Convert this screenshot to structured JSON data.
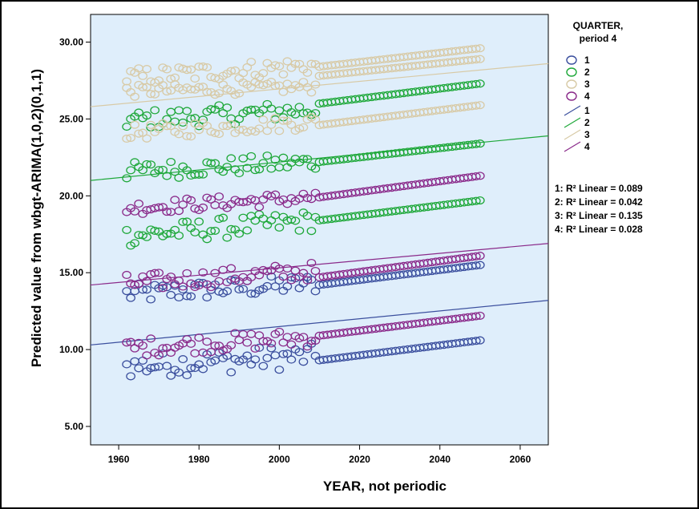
{
  "chart_data": {
    "type": "scatter",
    "title": "",
    "xlabel": "YEAR, not periodic",
    "ylabel": "Predicted value from wbgt-ARIMA(1,0,2)(0,1,1)",
    "xlim": [
      1953,
      2067
    ],
    "ylim": [
      3.8,
      31.8
    ],
    "x_ticks": [
      "1960",
      "1980",
      "2000",
      "2020",
      "2040",
      "2060"
    ],
    "y_ticks": [
      "5.00",
      "10.00",
      "15.00",
      "20.00",
      "25.00",
      "30.00"
    ],
    "grid": false,
    "plot_background": "#dfeefb",
    "legend": {
      "title_line1": "QUARTER,",
      "title_line2": "period 4",
      "placement": "right",
      "marker_labels": [
        "1",
        "2",
        "3",
        "4"
      ],
      "line_labels": [
        "1",
        "2",
        "3",
        "4"
      ]
    },
    "fit_labels": [
      "1: R² Linear = 0.089",
      "2: R² Linear = 0.042",
      "3: R² Linear = 0.135",
      "4: R² Linear = 0.028"
    ],
    "series": [
      {
        "name": "1",
        "color": "#3b4f9e",
        "fit_line": {
          "x": [
            1953,
            2067
          ],
          "y": [
            10.3,
            13.2
          ]
        },
        "bands": [
          {
            "x_start": 1962,
            "x_end": 2009,
            "y_start": 13.6,
            "y_end": 14.3,
            "jitter": 0.65
          },
          {
            "x_start": 1962,
            "x_end": 2009,
            "y_start": 8.9,
            "y_end": 9.6,
            "jitter": 0.8
          },
          {
            "x_start": 2010,
            "x_end": 2050,
            "y_start": 14.2,
            "y_end": 15.5,
            "jitter": 0
          },
          {
            "x_start": 2010,
            "x_end": 2050,
            "y_start": 9.3,
            "y_end": 10.6,
            "jitter": 0
          }
        ]
      },
      {
        "name": "2",
        "color": "#1fa83a",
        "fit_line": {
          "x": [
            1953,
            2067
          ],
          "y": [
            21.0,
            23.9
          ]
        },
        "bands": [
          {
            "x_start": 1962,
            "x_end": 2009,
            "y_start": 24.9,
            "y_end": 25.6,
            "jitter": 0.65
          },
          {
            "x_start": 1962,
            "x_end": 2009,
            "y_start": 21.6,
            "y_end": 22.2,
            "jitter": 0.6
          },
          {
            "x_start": 1962,
            "x_end": 2009,
            "y_start": 17.4,
            "y_end": 18.4,
            "jitter": 0.7
          },
          {
            "x_start": 2010,
            "x_end": 2050,
            "y_start": 26.0,
            "y_end": 27.3,
            "jitter": 0
          },
          {
            "x_start": 2010,
            "x_end": 2050,
            "y_start": 22.2,
            "y_end": 23.4,
            "jitter": 0
          },
          {
            "x_start": 2010,
            "x_end": 2050,
            "y_start": 18.4,
            "y_end": 19.7,
            "jitter": 0
          }
        ]
      },
      {
        "name": "3",
        "color": "#d8caa6",
        "fit_line": {
          "x": [
            1953,
            2067
          ],
          "y": [
            25.8,
            28.6
          ]
        },
        "bands": [
          {
            "x_start": 1962,
            "x_end": 2009,
            "y_start": 27.7,
            "y_end": 28.5,
            "jitter": 0.6
          },
          {
            "x_start": 1962,
            "x_end": 2009,
            "y_start": 26.8,
            "y_end": 27.1,
            "jitter": 0.4
          },
          {
            "x_start": 1962,
            "x_end": 2009,
            "y_start": 24.1,
            "y_end": 24.8,
            "jitter": 0.5
          },
          {
            "x_start": 2010,
            "x_end": 2050,
            "y_start": 28.4,
            "y_end": 29.6,
            "jitter": 0
          },
          {
            "x_start": 2010,
            "x_end": 2050,
            "y_start": 27.8,
            "y_end": 28.9,
            "jitter": 0
          },
          {
            "x_start": 2010,
            "x_end": 2050,
            "y_start": 24.6,
            "y_end": 25.9,
            "jitter": 0
          }
        ]
      },
      {
        "name": "4",
        "color": "#8a2a8a",
        "fit_line": {
          "x": [
            1953,
            2067
          ],
          "y": [
            14.2,
            16.9
          ]
        },
        "bands": [
          {
            "x_start": 1962,
            "x_end": 2009,
            "y_start": 19.2,
            "y_end": 19.9,
            "jitter": 0.45
          },
          {
            "x_start": 1962,
            "x_end": 2009,
            "y_start": 14.3,
            "y_end": 15.1,
            "jitter": 0.6
          },
          {
            "x_start": 1962,
            "x_end": 2009,
            "y_start": 10.1,
            "y_end": 10.8,
            "jitter": 0.6
          },
          {
            "x_start": 2010,
            "x_end": 2050,
            "y_start": 19.9,
            "y_end": 21.3,
            "jitter": 0
          },
          {
            "x_start": 2010,
            "x_end": 2050,
            "y_start": 14.7,
            "y_end": 16.1,
            "jitter": 0
          },
          {
            "x_start": 2010,
            "x_end": 2050,
            "y_start": 10.9,
            "y_end": 12.2,
            "jitter": 0
          }
        ]
      }
    ]
  }
}
